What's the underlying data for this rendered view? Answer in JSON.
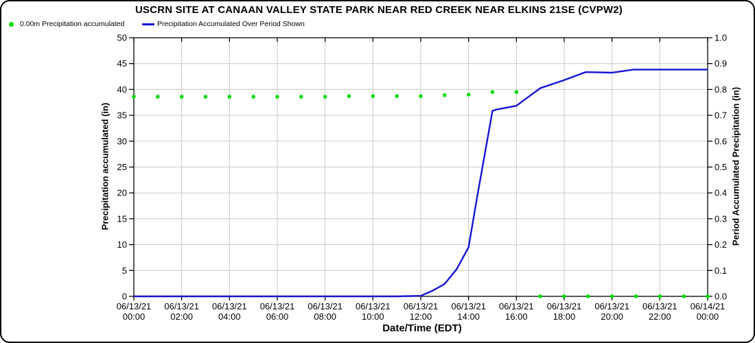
{
  "title": "USCRN SITE AT CANAAN VALLEY STATE PARK NEAR RED CREEK NEAR ELKINS 21SE (CVPW2)",
  "legend": [
    {
      "label": "0.00m Precipitation accumulated",
      "marker": "dot-icon",
      "color": "#00d900"
    },
    {
      "label": "Precipitation Accumulated Over Period Shown",
      "marker": "line-icon",
      "color": "#1414d2"
    }
  ],
  "chart_data": {
    "type": "line",
    "title": "USCRN SITE AT CANAAN VALLEY STATE PARK NEAR RED CREEK NEAR ELKINS 21SE (CVPW2)",
    "xlabel": "Date/Time (EDT)",
    "ylabel_left": "Precipitation accumulated (in)",
    "ylabel_right": "Period Accumulated Precipitation (in)",
    "grid": true,
    "x_range_hours": [
      0,
      24
    ],
    "x_tick_step_hours": 2,
    "x_ticks": [
      {
        "date": "06/13/21",
        "time": "00:00"
      },
      {
        "date": "06/13/21",
        "time": "02:00"
      },
      {
        "date": "06/13/21",
        "time": "04:00"
      },
      {
        "date": "06/13/21",
        "time": "06:00"
      },
      {
        "date": "06/13/21",
        "time": "08:00"
      },
      {
        "date": "06/13/21",
        "time": "10:00"
      },
      {
        "date": "06/13/21",
        "time": "12:00"
      },
      {
        "date": "06/13/21",
        "time": "14:00"
      },
      {
        "date": "06/13/21",
        "time": "16:00"
      },
      {
        "date": "06/13/21",
        "time": "18:00"
      },
      {
        "date": "06/13/21",
        "time": "20:00"
      },
      {
        "date": "06/13/21",
        "time": "22:00"
      },
      {
        "date": "06/14/21",
        "time": "00:00"
      }
    ],
    "left_axis": {
      "min": 0,
      "max": 50,
      "step": 5
    },
    "right_axis": {
      "min": 0.0,
      "max": 1.0,
      "step": 0.1,
      "decimals": 1
    },
    "colors": {
      "grid": "#c9c9c9",
      "axis": "#000000",
      "scatter": "#00d900",
      "line": "#1414d2"
    },
    "series": [
      {
        "name": "0.00m Precipitation accumulated",
        "type": "scatter",
        "axis": "left",
        "color": "#00d900",
        "points": [
          [
            0,
            38.6
          ],
          [
            1,
            38.6
          ],
          [
            2,
            38.6
          ],
          [
            3,
            38.6
          ],
          [
            4,
            38.6
          ],
          [
            5,
            38.6
          ],
          [
            6,
            38.6
          ],
          [
            7,
            38.6
          ],
          [
            8,
            38.6
          ],
          [
            9,
            38.7
          ],
          [
            10,
            38.7
          ],
          [
            11,
            38.7
          ],
          [
            12,
            38.7
          ],
          [
            13,
            38.9
          ],
          [
            14,
            39.0
          ],
          [
            15,
            39.5
          ],
          [
            16,
            39.5
          ],
          [
            17,
            0
          ],
          [
            18,
            0
          ],
          [
            19,
            0
          ],
          [
            20,
            0
          ],
          [
            21,
            0
          ],
          [
            22,
            0
          ],
          [
            23,
            0
          ],
          [
            24,
            0
          ]
        ]
      },
      {
        "name": "Precipitation Accumulated Over Period Shown",
        "type": "line",
        "axis": "right",
        "color": "#1414d2",
        "points": [
          [
            0,
            0
          ],
          [
            1,
            0
          ],
          [
            2,
            0
          ],
          [
            3,
            0
          ],
          [
            4,
            0
          ],
          [
            5,
            0
          ],
          [
            6,
            0
          ],
          [
            7,
            0
          ],
          [
            8,
            0
          ],
          [
            9,
            0
          ],
          [
            10,
            0
          ],
          [
            11,
            0
          ],
          [
            12,
            0.002
          ],
          [
            12.5,
            0.022
          ],
          [
            13,
            0.048
          ],
          [
            13.5,
            0.105
          ],
          [
            14,
            0.19
          ],
          [
            14.35,
            0.38
          ],
          [
            15,
            0.717
          ],
          [
            15.15,
            0.722
          ],
          [
            16,
            0.737
          ],
          [
            17,
            0.805
          ],
          [
            18,
            0.836
          ],
          [
            18.9,
            0.867
          ],
          [
            20,
            0.865
          ],
          [
            20.9,
            0.877
          ],
          [
            22,
            0.877
          ],
          [
            23,
            0.877
          ],
          [
            24,
            0.877
          ]
        ]
      }
    ]
  }
}
